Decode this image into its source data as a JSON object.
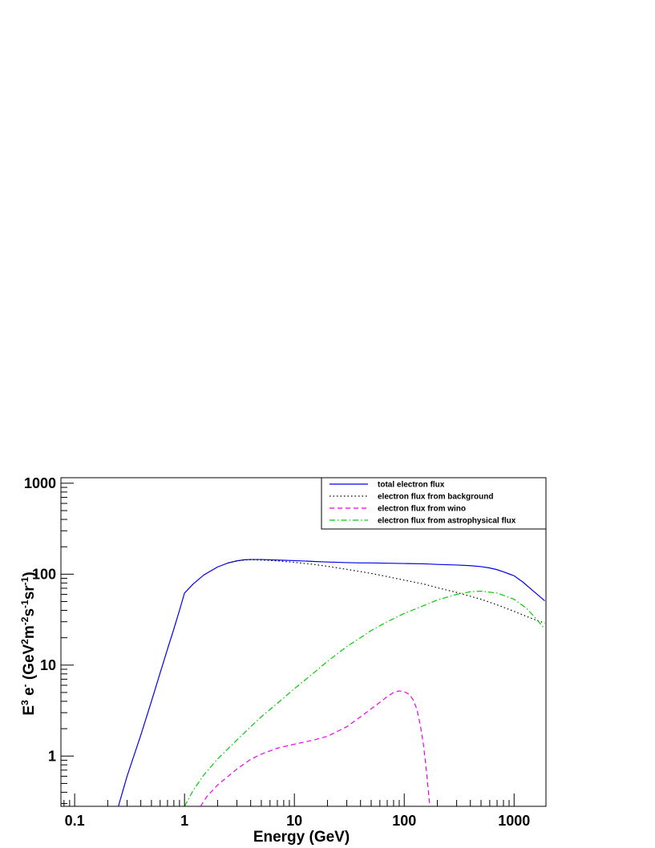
{
  "chart_data": {
    "type": "line",
    "title": "",
    "xlabel": "Energy (GeV)",
    "ylabel": "E3 e- (GeV2m-2s-1sr-1)",
    "ylabel_parts": {
      "base1": "E",
      "sup1": "3",
      "base2": " e",
      "sup2": "-",
      "base3": " (GeV",
      "sup3": "2",
      "base4": "m",
      "sup4": "-2",
      "base5": "s",
      "sup5": "-1",
      "base6": "sr",
      "sup6": "-1",
      "base7": ")"
    },
    "x_scale": "log",
    "y_scale": "log",
    "xlim": [
      0.075,
      1950
    ],
    "ylim": [
      0.28,
      1150
    ],
    "x_ticks": [
      {
        "value": 0.1,
        "label": "0.1"
      },
      {
        "value": 1,
        "label": "1"
      },
      {
        "value": 10,
        "label": "10"
      },
      {
        "value": 100,
        "label": "100"
      },
      {
        "value": 1000,
        "label": "1000"
      }
    ],
    "y_ticks": [
      {
        "value": 1,
        "label": "1"
      },
      {
        "value": 10,
        "label": "10"
      },
      {
        "value": 100,
        "label": "100"
      },
      {
        "value": 1000,
        "label": "1000"
      }
    ],
    "grid": false,
    "legend_position": "top-right",
    "series": [
      {
        "name": "total electron flux",
        "color": "#0000ee",
        "dash": "solid",
        "points": [
          [
            0.25,
            0.28
          ],
          [
            0.3,
            0.6
          ],
          [
            0.4,
            1.7
          ],
          [
            0.5,
            4.0
          ],
          [
            0.6,
            8.2
          ],
          [
            0.7,
            15
          ],
          [
            0.8,
            25
          ],
          [
            0.9,
            40
          ],
          [
            1.0,
            62
          ],
          [
            1.2,
            78
          ],
          [
            1.5,
            98
          ],
          [
            2,
            120
          ],
          [
            2.5,
            133
          ],
          [
            3,
            140
          ],
          [
            3.5,
            144
          ],
          [
            4,
            145
          ],
          [
            5,
            145
          ],
          [
            7,
            143
          ],
          [
            10,
            141
          ],
          [
            15,
            138
          ],
          [
            20,
            136
          ],
          [
            30,
            134
          ],
          [
            40,
            133
          ],
          [
            50,
            133
          ],
          [
            70,
            132
          ],
          [
            100,
            131
          ],
          [
            150,
            130
          ],
          [
            200,
            128
          ],
          [
            300,
            126
          ],
          [
            400,
            124
          ],
          [
            500,
            121
          ],
          [
            600,
            117
          ],
          [
            700,
            112
          ],
          [
            800,
            106
          ],
          [
            1000,
            96
          ],
          [
            1200,
            82
          ],
          [
            1500,
            65
          ],
          [
            1900,
            51
          ]
        ]
      },
      {
        "name": "electron flux from background",
        "color": "#000000",
        "dash": "dotted",
        "points": [
          [
            2.5,
            133
          ],
          [
            3,
            140
          ],
          [
            3.5,
            143
          ],
          [
            4,
            144
          ],
          [
            5,
            143
          ],
          [
            7,
            140
          ],
          [
            10,
            135
          ],
          [
            15,
            128
          ],
          [
            20,
            122
          ],
          [
            30,
            113
          ],
          [
            50,
            102
          ],
          [
            70,
            94
          ],
          [
            100,
            86
          ],
          [
            150,
            78
          ],
          [
            200,
            71
          ],
          [
            300,
            63
          ],
          [
            500,
            53
          ],
          [
            700,
            46
          ],
          [
            1000,
            39
          ],
          [
            1500,
            32
          ],
          [
            1900,
            29
          ]
        ]
      },
      {
        "name": "electron flux from wino",
        "color": "#ee00ee",
        "dash": "dashed",
        "points": [
          [
            1.4,
            0.28
          ],
          [
            1.6,
            0.36
          ],
          [
            2,
            0.48
          ],
          [
            3,
            0.72
          ],
          [
            4,
            0.92
          ],
          [
            5,
            1.05
          ],
          [
            7,
            1.22
          ],
          [
            10,
            1.35
          ],
          [
            15,
            1.5
          ],
          [
            20,
            1.65
          ],
          [
            30,
            2.1
          ],
          [
            40,
            2.7
          ],
          [
            50,
            3.3
          ],
          [
            60,
            3.9
          ],
          [
            70,
            4.5
          ],
          [
            80,
            5.0
          ],
          [
            90,
            5.2
          ],
          [
            100,
            5.1
          ],
          [
            110,
            4.8
          ],
          [
            120,
            4.2
          ],
          [
            130,
            3.3
          ],
          [
            140,
            2.2
          ],
          [
            150,
            1.3
          ],
          [
            160,
            0.65
          ],
          [
            170,
            0.3
          ],
          [
            172,
            0.28
          ]
        ]
      },
      {
        "name": "electron flux from astrophysical flux",
        "color": "#00cc00",
        "dash": "dashdot",
        "points": [
          [
            1.0,
            0.28
          ],
          [
            1.2,
            0.42
          ],
          [
            1.5,
            0.62
          ],
          [
            2,
            0.93
          ],
          [
            3,
            1.5
          ],
          [
            4,
            2.1
          ],
          [
            5,
            2.7
          ],
          [
            7,
            3.8
          ],
          [
            10,
            5.5
          ],
          [
            15,
            8.2
          ],
          [
            20,
            11
          ],
          [
            30,
            16
          ],
          [
            40,
            20
          ],
          [
            50,
            24
          ],
          [
            70,
            30
          ],
          [
            100,
            37
          ],
          [
            150,
            45
          ],
          [
            200,
            52
          ],
          [
            300,
            60
          ],
          [
            400,
            64
          ],
          [
            500,
            65
          ],
          [
            700,
            62
          ],
          [
            1000,
            53
          ],
          [
            1300,
            42
          ],
          [
            1600,
            32
          ],
          [
            1900,
            25
          ]
        ]
      }
    ]
  }
}
